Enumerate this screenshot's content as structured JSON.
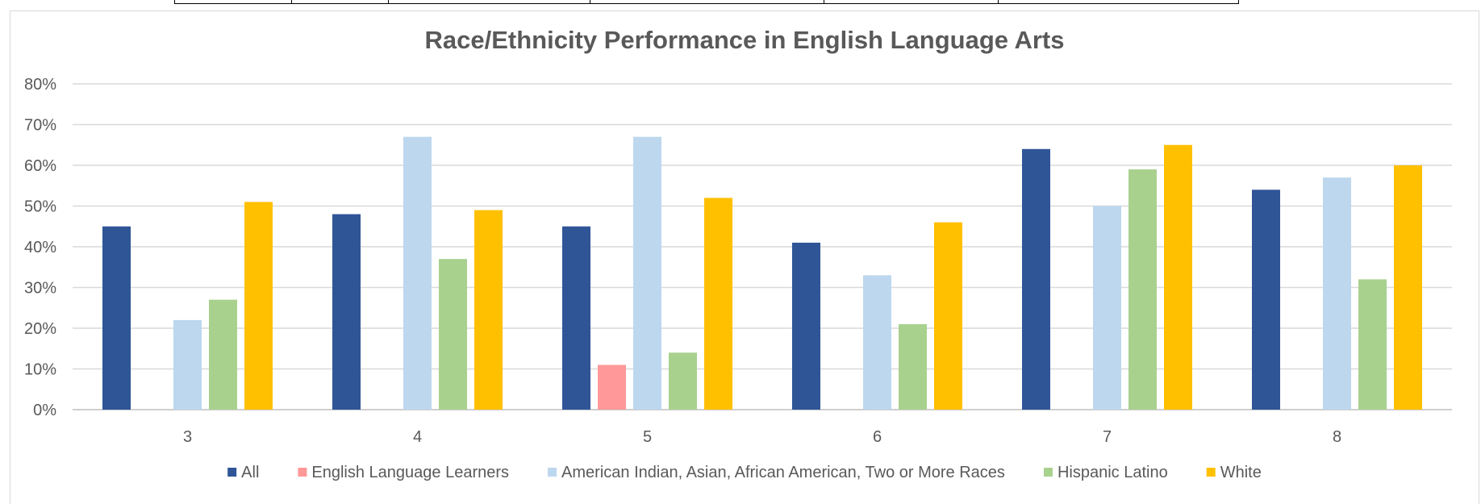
{
  "chart_data": {
    "type": "bar",
    "title": "Race/Ethnicity Performance in English Language Arts",
    "xlabel": "",
    "ylabel": "",
    "categories": [
      "3",
      "4",
      "5",
      "6",
      "7",
      "8"
    ],
    "ylim": [
      0,
      0.8
    ],
    "yticks": [
      "0%",
      "10%",
      "20%",
      "30%",
      "40%",
      "50%",
      "60%",
      "70%",
      "80%"
    ],
    "grid": true,
    "legend_position": "bottom",
    "series": [
      {
        "name": "All",
        "color": "#2F5597",
        "values": [
          0.45,
          0.48,
          0.45,
          0.41,
          0.64,
          0.54
        ]
      },
      {
        "name": "English Language Learners",
        "color": "#FF9999",
        "values": [
          null,
          null,
          0.11,
          null,
          null,
          null
        ]
      },
      {
        "name": "American Indian, Asian, African American, Two or More Races",
        "color": "#BDD7EE",
        "values": [
          0.22,
          0.67,
          0.67,
          0.33,
          0.5,
          0.57
        ]
      },
      {
        "name": "Hispanic Latino",
        "color": "#A9D18E",
        "values": [
          0.27,
          0.37,
          0.14,
          0.21,
          0.59,
          0.32
        ]
      },
      {
        "name": "White",
        "color": "#FFC000",
        "values": [
          0.51,
          0.49,
          0.52,
          0.46,
          0.65,
          0.6
        ]
      }
    ]
  }
}
